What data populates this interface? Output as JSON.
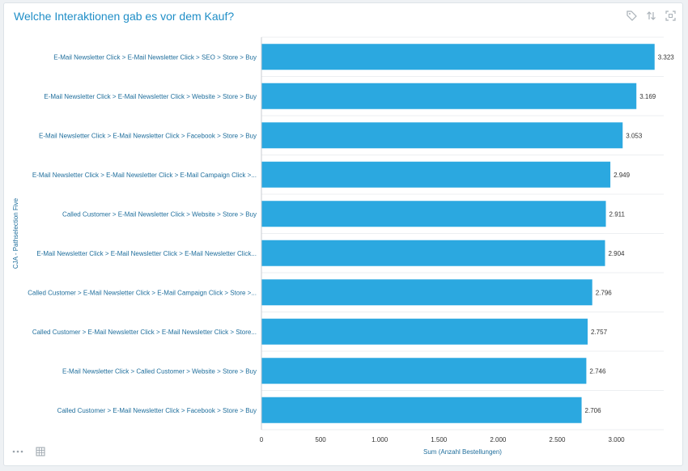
{
  "panel": {
    "title": "Welche Interaktionen gab es vor dem Kauf?",
    "icons": [
      "tag-icon",
      "sort-icon",
      "fullscreen-icon"
    ],
    "footer_icons": [
      "more-icon",
      "table-icon"
    ]
  },
  "colors": {
    "bar": "#2ba8e0",
    "title": "#1f8ec7",
    "label": "#1f6e9c"
  },
  "chart_data": {
    "type": "bar",
    "orientation": "horizontal",
    "categories": [
      "E-Mail Newsletter Click > E-Mail Newsletter Click > SEO > Store > Buy",
      "E-Mail Newsletter Click > E-Mail Newsletter Click > Website > Store > Buy",
      "E-Mail Newsletter Click > E-Mail Newsletter Click > Facebook > Store > Buy",
      "E-Mail Newsletter Click > E-Mail Newsletter Click > E-Mail Campaign Click >...",
      "Called Customer > E-Mail Newsletter Click > Website > Store > Buy",
      "E-Mail Newsletter Click > E-Mail Newsletter Click > E-Mail Newsletter Click...",
      "Called Customer > E-Mail Newsletter Click > E-Mail Campaign Click > Store >...",
      "Called Customer > E-Mail Newsletter Click > E-Mail Newsletter Click > Store...",
      "E-Mail Newsletter Click > Called Customer > Website > Store > Buy",
      "Called Customer > E-Mail Newsletter Click > Facebook > Store > Buy"
    ],
    "values": [
      3323,
      3169,
      3053,
      2949,
      2911,
      2904,
      2796,
      2757,
      2746,
      2706
    ],
    "value_labels": [
      "3.323",
      "3.169",
      "3.053",
      "2.949",
      "2.911",
      "2.904",
      "2.796",
      "2.757",
      "2.746",
      "2.706"
    ],
    "xticks": [
      0,
      500,
      1000,
      1500,
      2000,
      2500,
      3000
    ],
    "xtick_labels": [
      "0",
      "500",
      "1.000",
      "1.500",
      "2.000",
      "2.500",
      "3.000"
    ],
    "xlim": [
      0,
      3400
    ],
    "xlabel": "Sum (Anzahl Bestellungen)",
    "ylabel": "CJA - Pathselection Five",
    "grid": true
  }
}
